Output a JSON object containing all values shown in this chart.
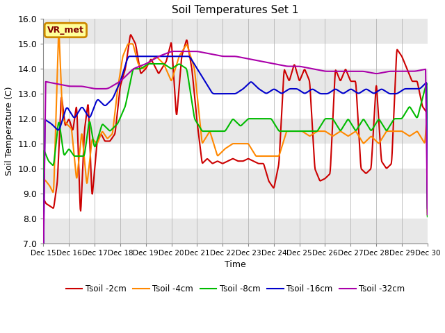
{
  "title": "Soil Temperatures Set 1",
  "xlabel": "Time",
  "ylabel": "Soil Temperature (C)",
  "ylim": [
    7.0,
    16.0
  ],
  "yticks": [
    7.0,
    8.0,
    9.0,
    10.0,
    11.0,
    12.0,
    13.0,
    14.0,
    15.0,
    16.0
  ],
  "background_color": "#ffffff",
  "plot_bg_bands": [
    [
      16.0,
      15.0,
      "#e8e8e8"
    ],
    [
      15.0,
      14.0,
      "#ffffff"
    ],
    [
      14.0,
      13.0,
      "#e8e8e8"
    ],
    [
      13.0,
      12.0,
      "#ffffff"
    ],
    [
      12.0,
      11.0,
      "#e8e8e8"
    ],
    [
      11.0,
      10.0,
      "#ffffff"
    ],
    [
      10.0,
      9.0,
      "#e8e8e8"
    ],
    [
      9.0,
      8.0,
      "#ffffff"
    ],
    [
      8.0,
      7.0,
      "#e8e8e8"
    ]
  ],
  "legend_label": "VR_met",
  "legend_bg": "#ffff99",
  "legend_border": "#cc8800",
  "xtick_labels": [
    "Dec 15",
    "Dec 16",
    "Dec 17",
    "Dec 18",
    "Dec 19",
    "Dec 20",
    "Dec 21",
    "Dec 22",
    "Dec 23",
    "Dec 24",
    "Dec 25",
    "Dec 26",
    "Dec 27",
    "Dec 28",
    "Dec 29",
    "Dec 30"
  ],
  "s2_x": [
    0,
    0.1,
    0.25,
    0.4,
    0.55,
    0.7,
    0.85,
    1.0,
    1.15,
    1.3,
    1.45,
    1.6,
    1.75,
    1.9,
    2.1,
    2.25,
    2.4,
    2.6,
    2.8,
    3.0,
    3.2,
    3.4,
    3.6,
    3.8,
    4.0,
    4.2,
    4.5,
    4.8,
    5.0,
    5.2,
    5.4,
    5.6,
    5.8,
    6.0,
    6.2,
    6.4,
    6.6,
    6.8,
    7.0,
    7.2,
    7.4,
    7.6,
    7.8,
    8.0,
    8.2,
    8.4,
    8.6,
    8.8,
    9.0,
    9.2,
    9.4,
    9.6,
    9.8,
    10.0,
    10.2,
    10.4,
    10.6,
    10.8,
    11.0,
    11.2,
    11.4,
    11.6,
    11.8,
    12.0,
    12.2,
    12.4,
    12.6,
    12.8,
    13.0,
    13.2,
    13.4,
    13.6,
    13.8,
    14.0,
    14.2,
    14.4,
    14.6,
    14.8,
    15.0
  ],
  "s2_y": [
    8.8,
    8.6,
    8.5,
    8.4,
    9.5,
    13.0,
    11.7,
    12.0,
    11.5,
    12.6,
    8.0,
    11.5,
    12.7,
    8.8,
    11.1,
    11.4,
    11.1,
    11.1,
    11.4,
    13.3,
    14.0,
    15.4,
    15.0,
    13.8,
    14.0,
    14.4,
    13.8,
    14.3,
    15.1,
    12.0,
    14.5,
    15.2,
    14.0,
    11.9,
    10.2,
    10.4,
    10.2,
    10.3,
    10.2,
    10.3,
    10.4,
    10.3,
    10.3,
    10.4,
    10.3,
    10.2,
    10.2,
    9.5,
    9.2,
    10.2,
    14.0,
    13.5,
    14.2,
    13.5,
    14.0,
    13.5,
    10.0,
    9.5,
    9.6,
    9.8,
    14.0,
    13.5,
    14.0,
    13.5,
    13.5,
    10.0,
    9.8,
    10.0,
    13.5,
    10.3,
    10.0,
    10.2,
    14.8,
    14.5,
    14.0,
    13.5,
    13.5,
    12.5,
    12.2
  ],
  "s4_x": [
    0,
    0.1,
    0.25,
    0.4,
    0.6,
    0.75,
    0.9,
    1.1,
    1.3,
    1.5,
    1.7,
    1.9,
    2.1,
    2.3,
    2.5,
    2.7,
    2.9,
    3.1,
    3.3,
    3.5,
    3.7,
    3.9,
    4.1,
    4.4,
    4.7,
    5.0,
    5.3,
    5.6,
    5.9,
    6.2,
    6.5,
    6.8,
    7.1,
    7.4,
    7.7,
    8.0,
    8.3,
    8.6,
    8.9,
    9.2,
    9.5,
    9.8,
    10.1,
    10.4,
    10.7,
    11.0,
    11.3,
    11.6,
    11.9,
    12.2,
    12.5,
    12.8,
    13.1,
    13.4,
    13.7,
    14.0,
    14.3,
    14.6,
    14.9,
    15.0
  ],
  "s4_y": [
    9.6,
    9.5,
    9.3,
    9.0,
    15.7,
    12.0,
    11.8,
    11.6,
    9.5,
    11.5,
    9.3,
    11.2,
    11.0,
    11.5,
    11.2,
    11.4,
    13.2,
    14.5,
    15.0,
    15.0,
    14.2,
    14.0,
    14.2,
    14.5,
    14.2,
    13.5,
    14.5,
    15.0,
    14.0,
    11.0,
    11.5,
    10.5,
    10.8,
    11.0,
    11.0,
    11.0,
    10.5,
    10.5,
    10.5,
    10.5,
    11.5,
    11.5,
    11.5,
    11.3,
    11.5,
    11.5,
    11.3,
    11.5,
    11.3,
    11.5,
    11.0,
    11.3,
    11.0,
    11.5,
    11.5,
    11.5,
    11.3,
    11.5,
    11.0,
    12.5
  ],
  "s8_x": [
    0,
    0.2,
    0.4,
    0.6,
    0.8,
    1.0,
    1.2,
    1.4,
    1.6,
    1.8,
    2.0,
    2.3,
    2.6,
    2.9,
    3.2,
    3.5,
    3.8,
    4.1,
    4.4,
    4.7,
    5.0,
    5.3,
    5.6,
    5.9,
    6.2,
    6.5,
    6.8,
    7.1,
    7.4,
    7.7,
    8.0,
    8.3,
    8.6,
    8.9,
    9.2,
    9.5,
    9.8,
    10.1,
    10.4,
    10.7,
    11.0,
    11.3,
    11.6,
    11.9,
    12.2,
    12.5,
    12.8,
    13.1,
    13.4,
    13.7,
    14.0,
    14.3,
    14.6,
    14.9,
    15.0
  ],
  "s8_y": [
    10.8,
    10.3,
    10.1,
    12.0,
    10.5,
    10.8,
    10.5,
    10.5,
    10.5,
    12.0,
    10.8,
    11.8,
    11.5,
    11.8,
    12.5,
    14.0,
    14.0,
    14.2,
    14.2,
    14.2,
    14.0,
    14.2,
    14.0,
    12.0,
    11.5,
    11.5,
    11.5,
    11.5,
    12.0,
    11.7,
    12.0,
    12.0,
    12.0,
    12.0,
    11.5,
    11.5,
    11.5,
    11.5,
    11.5,
    11.5,
    12.0,
    12.0,
    11.5,
    12.0,
    11.5,
    12.0,
    11.5,
    12.0,
    11.5,
    12.0,
    12.0,
    12.5,
    12.0,
    13.2,
    13.5
  ],
  "s16_x": [
    0,
    0.3,
    0.6,
    0.9,
    1.2,
    1.5,
    1.8,
    2.1,
    2.4,
    2.7,
    3.0,
    3.3,
    3.6,
    3.9,
    4.2,
    4.5,
    4.8,
    5.1,
    5.4,
    5.7,
    6.0,
    6.3,
    6.6,
    6.9,
    7.2,
    7.5,
    7.8,
    8.1,
    8.4,
    8.7,
    9.0,
    9.3,
    9.6,
    9.9,
    10.2,
    10.5,
    10.8,
    11.1,
    11.4,
    11.7,
    12.0,
    12.3,
    12.6,
    12.9,
    13.2,
    13.5,
    13.8,
    14.1,
    14.4,
    14.7,
    15.0
  ],
  "s16_y": [
    12.0,
    11.8,
    11.5,
    12.5,
    12.0,
    12.5,
    12.0,
    12.8,
    12.5,
    12.8,
    13.5,
    14.5,
    14.5,
    14.5,
    14.5,
    14.5,
    14.5,
    14.5,
    14.5,
    14.5,
    14.0,
    13.5,
    13.0,
    13.0,
    13.0,
    13.0,
    13.2,
    13.5,
    13.2,
    13.0,
    13.2,
    13.0,
    13.2,
    13.2,
    13.0,
    13.2,
    13.0,
    13.0,
    13.2,
    13.0,
    13.2,
    13.0,
    13.2,
    13.0,
    13.2,
    13.0,
    13.0,
    13.2,
    13.2,
    13.2,
    13.5
  ],
  "s32_x": [
    0,
    0.5,
    1.0,
    1.5,
    2.0,
    2.5,
    3.0,
    3.5,
    4.0,
    4.5,
    5.0,
    5.5,
    6.0,
    6.5,
    7.0,
    7.5,
    8.0,
    8.5,
    9.0,
    9.5,
    10.0,
    10.5,
    11.0,
    11.5,
    12.0,
    12.5,
    13.0,
    13.5,
    14.0,
    14.5,
    15.0
  ],
  "s32_y": [
    13.5,
    13.4,
    13.3,
    13.3,
    13.2,
    13.2,
    13.5,
    14.0,
    14.2,
    14.5,
    14.7,
    14.7,
    14.7,
    14.6,
    14.5,
    14.5,
    14.4,
    14.3,
    14.2,
    14.1,
    14.1,
    14.0,
    13.9,
    13.9,
    13.9,
    13.9,
    13.8,
    13.9,
    13.9,
    13.9,
    14.0
  ]
}
